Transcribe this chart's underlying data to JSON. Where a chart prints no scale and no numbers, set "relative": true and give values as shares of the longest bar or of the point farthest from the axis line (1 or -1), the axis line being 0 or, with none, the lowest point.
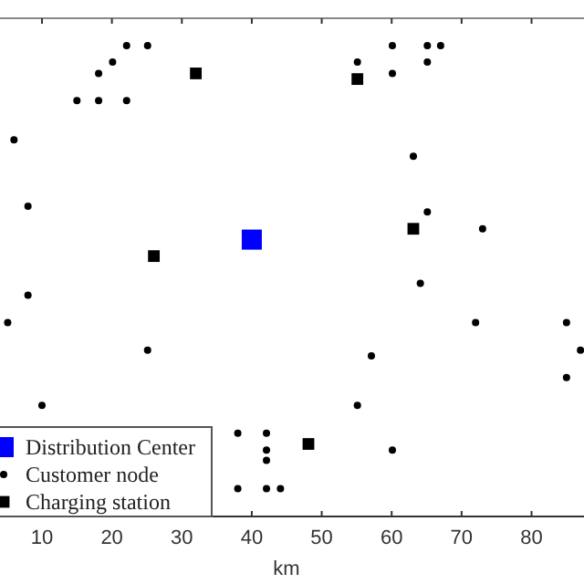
{
  "chart_data": {
    "type": "scatter",
    "xlabel": "km",
    "relative": true,
    "xlim": [
      4,
      87.5
    ],
    "xticks": [
      10,
      20,
      30,
      40,
      50,
      60,
      70,
      80
    ],
    "legend": "bottom left",
    "tick_labels": "x",
    "grid": false,
    "series": [
      {
        "name": "Distribution Center",
        "color": "#0000ff",
        "marker": "square",
        "x": [
          40.0
        ],
        "values": [
          0.588
        ]
      },
      {
        "name": "Customer node",
        "color": "#000000",
        "marker": "circle",
        "x": [
          22.1,
          25.1,
          20.1,
          18.1,
          15.0,
          18.1,
          22.1,
          6.0,
          8.0,
          60.1,
          65.1,
          67.0,
          55.1,
          65.1,
          60.1,
          63.1,
          65.1,
          73.0,
          64.1,
          8.0,
          5.1,
          25.1,
          57.1,
          72.0,
          85.0,
          87.0,
          85.0,
          10.0,
          55.1,
          38.0,
          42.1,
          42.1,
          42.1,
          60.1,
          38.0,
          42.1,
          44.1
        ],
        "values": [
          1.0,
          1.0,
          0.965,
          0.941,
          0.883,
          0.883,
          0.883,
          0.8,
          0.659,
          1.0,
          1.0,
          1.0,
          0.965,
          0.965,
          0.941,
          0.765,
          0.647,
          0.611,
          0.495,
          0.47,
          0.412,
          0.353,
          0.341,
          0.412,
          0.412,
          0.353,
          0.295,
          0.236,
          0.236,
          0.177,
          0.177,
          0.141,
          0.119,
          0.141,
          0.059,
          0.059,
          0.059
        ]
      },
      {
        "name": "Charging station",
        "color": "#000000",
        "marker": "square",
        "x": [
          32.0,
          55.1,
          26.0,
          63.1,
          48.1
        ],
        "values": [
          0.941,
          0.929,
          0.553,
          0.611,
          0.154
        ]
      }
    ]
  }
}
